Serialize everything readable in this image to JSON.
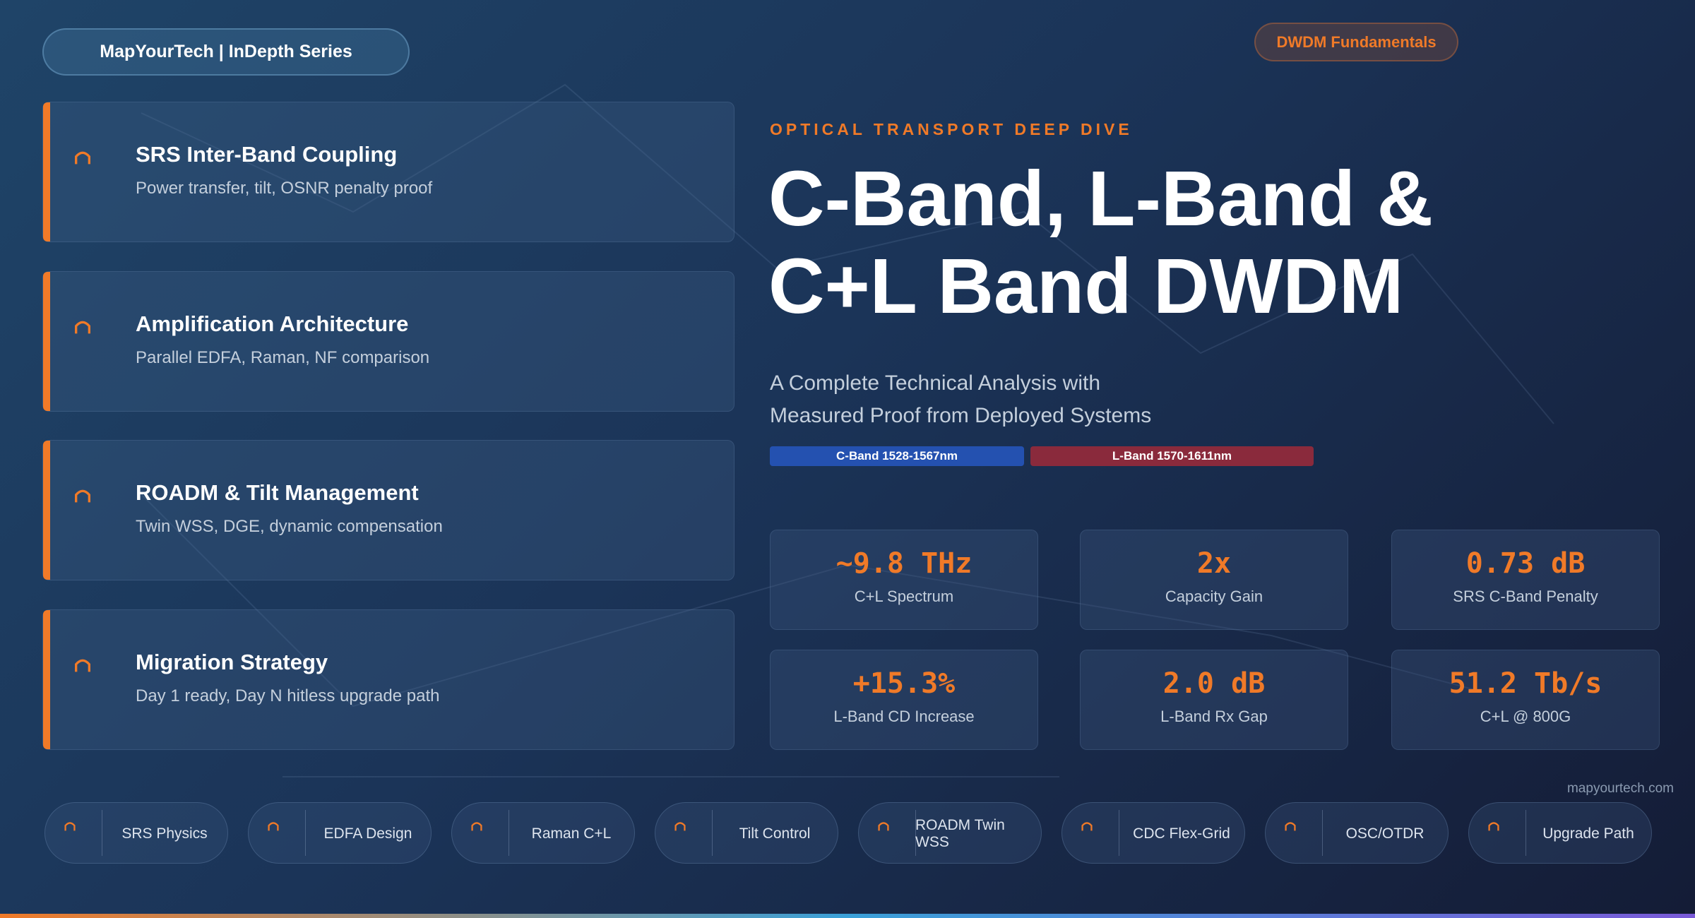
{
  "header": {
    "brand": "MapYourTech | InDepth Series",
    "tag": "DWDM Fundamentals"
  },
  "cards": [
    {
      "title": "SRS Inter-Band Coupling",
      "subtitle": "Power transfer, tilt, OSNR penalty proof"
    },
    {
      "title": "Amplification Architecture",
      "subtitle": "Parallel EDFA, Raman, NF comparison"
    },
    {
      "title": "ROADM & Tilt Management",
      "subtitle": "Twin WSS, DGE, dynamic compensation"
    },
    {
      "title": "Migration Strategy",
      "subtitle": "Day 1 ready, Day N hitless upgrade path"
    }
  ],
  "hero": {
    "eyebrow": "OPTICAL TRANSPORT DEEP DIVE",
    "title_lines": [
      "C-Band, L-Band &",
      "C+L Band DWDM"
    ],
    "subtitle_lines": [
      "A Complete Technical Analysis with",
      "Measured Proof from Deployed Systems"
    ],
    "bands": [
      "C-Band 1528-1567nm",
      "L-Band 1570-1611nm"
    ]
  },
  "stats": [
    {
      "value": "~9.8 THz",
      "label": "C+L Spectrum"
    },
    {
      "value": "2x",
      "label": "Capacity Gain"
    },
    {
      "value": "0.73 dB",
      "label": "SRS C-Band Penalty"
    },
    {
      "value": "+15.3%",
      "label": "L-Band CD Increase"
    },
    {
      "value": "2.0 dB",
      "label": "L-Band Rx Gap"
    },
    {
      "value": "51.2 Tb/s",
      "label": "C+L @ 800G"
    }
  ],
  "footer": {
    "site": "mapyourtech.com",
    "pills": [
      "SRS Physics",
      "EDFA Design",
      "Raman C+L",
      "Tilt Control",
      "ROADM Twin WSS",
      "CDC Flex-Grid",
      "OSC/OTDR",
      "Upgrade Path"
    ]
  }
}
